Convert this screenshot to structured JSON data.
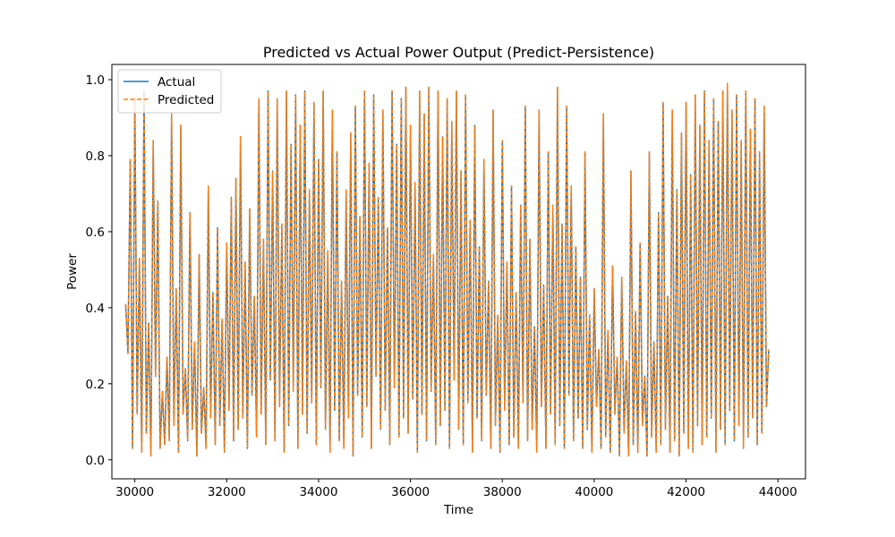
{
  "chart_data": {
    "type": "line",
    "title": "Predicted vs Actual Power Output (Predict-Persistence)",
    "xlabel": "Time",
    "ylabel": "Power",
    "xlim": [
      29500,
      44600
    ],
    "ylim": [
      -0.05,
      1.04
    ],
    "xticks": [
      30000,
      32000,
      34000,
      36000,
      38000,
      40000,
      42000,
      44000
    ],
    "yticks": [
      0.0,
      0.2,
      0.4,
      0.6,
      0.8,
      1.0
    ],
    "x_range": [
      29800,
      43800
    ],
    "legend_position": "upper-left",
    "grid": false,
    "series": [
      {
        "name": "Actual",
        "color": "#1f77b4",
        "style": "solid"
      },
      {
        "name": "Predicted",
        "color": "#ff7f0e",
        "style": "dashed"
      }
    ],
    "points": [
      [
        29800,
        0.41
      ],
      [
        29850,
        0.28
      ],
      [
        29900,
        0.79
      ],
      [
        29950,
        0.03
      ],
      [
        30000,
        0.95
      ],
      [
        30050,
        0.12
      ],
      [
        30100,
        0.53
      ],
      [
        30150,
        0.02
      ],
      [
        30200,
        0.97
      ],
      [
        30250,
        0.07
      ],
      [
        30300,
        0.36
      ],
      [
        30350,
        0.01
      ],
      [
        30400,
        0.84
      ],
      [
        30450,
        0.22
      ],
      [
        30500,
        0.68
      ],
      [
        30550,
        0.03
      ],
      [
        30600,
        0.18
      ],
      [
        30650,
        0.04
      ],
      [
        30700,
        0.27
      ],
      [
        30750,
        0.05
      ],
      [
        30800,
        0.91
      ],
      [
        30850,
        0.09
      ],
      [
        30900,
        0.45
      ],
      [
        30950,
        0.02
      ],
      [
        31000,
        0.88
      ],
      [
        31050,
        0.12
      ],
      [
        31100,
        0.24
      ],
      [
        31150,
        0.05
      ],
      [
        31200,
        0.65
      ],
      [
        31250,
        0.08
      ],
      [
        31300,
        0.31
      ],
      [
        31350,
        0.01
      ],
      [
        31400,
        0.54
      ],
      [
        31450,
        0.07
      ],
      [
        31500,
        0.19
      ],
      [
        31550,
        0.03
      ],
      [
        31600,
        0.72
      ],
      [
        31650,
        0.11
      ],
      [
        31700,
        0.44
      ],
      [
        31750,
        0.04
      ],
      [
        31800,
        0.61
      ],
      [
        31850,
        0.09
      ],
      [
        31900,
        0.37
      ],
      [
        31950,
        0.02
      ],
      [
        32000,
        0.57
      ],
      [
        32050,
        0.13
      ],
      [
        32100,
        0.69
      ],
      [
        32150,
        0.05
      ],
      [
        32200,
        0.74
      ],
      [
        32250,
        0.08
      ],
      [
        32300,
        0.85
      ],
      [
        32350,
        0.11
      ],
      [
        32400,
        0.52
      ],
      [
        32450,
        0.03
      ],
      [
        32500,
        0.66
      ],
      [
        32550,
        0.17
      ],
      [
        32600,
        0.43
      ],
      [
        32650,
        0.06
      ],
      [
        32700,
        0.95
      ],
      [
        32750,
        0.12
      ],
      [
        32800,
        0.58
      ],
      [
        32850,
        0.04
      ],
      [
        32900,
        0.97
      ],
      [
        32950,
        0.21
      ],
      [
        33000,
        0.76
      ],
      [
        33050,
        0.05
      ],
      [
        33100,
        0.95
      ],
      [
        33150,
        0.14
      ],
      [
        33200,
        0.62
      ],
      [
        33250,
        0.02
      ],
      [
        33300,
        0.97
      ],
      [
        33350,
        0.09
      ],
      [
        33400,
        0.83
      ],
      [
        33450,
        0.18
      ],
      [
        33500,
        0.96
      ],
      [
        33550,
        0.03
      ],
      [
        33600,
        0.88
      ],
      [
        33650,
        0.12
      ],
      [
        33700,
        0.97
      ],
      [
        33750,
        0.07
      ],
      [
        33800,
        0.71
      ],
      [
        33850,
        0.15
      ],
      [
        33900,
        0.94
      ],
      [
        33950,
        0.04
      ],
      [
        34000,
        0.79
      ],
      [
        34050,
        0.19
      ],
      [
        34100,
        0.97
      ],
      [
        34150,
        0.08
      ],
      [
        34200,
        0.55
      ],
      [
        34250,
        0.02
      ],
      [
        34300,
        0.92
      ],
      [
        34350,
        0.13
      ],
      [
        34400,
        0.81
      ],
      [
        34450,
        0.05
      ],
      [
        34500,
        0.47
      ],
      [
        34550,
        0.03
      ],
      [
        34600,
        0.71
      ],
      [
        34650,
        0.11
      ],
      [
        34700,
        0.86
      ],
      [
        34750,
        0.01
      ],
      [
        34800,
        0.93
      ],
      [
        34850,
        0.17
      ],
      [
        34900,
        0.64
      ],
      [
        34950,
        0.06
      ],
      [
        35000,
        0.97
      ],
      [
        35050,
        0.14
      ],
      [
        35100,
        0.78
      ],
      [
        35150,
        0.03
      ],
      [
        35200,
        0.96
      ],
      [
        35250,
        0.22
      ],
      [
        35300,
        0.69
      ],
      [
        35350,
        0.08
      ],
      [
        35400,
        0.92
      ],
      [
        35450,
        0.13
      ],
      [
        35500,
        0.61
      ],
      [
        35550,
        0.04
      ],
      [
        35600,
        0.97
      ],
      [
        35650,
        0.19
      ],
      [
        35700,
        0.83
      ],
      [
        35750,
        0.06
      ],
      [
        35800,
        0.95
      ],
      [
        35850,
        0.11
      ],
      [
        35900,
        0.98
      ],
      [
        35950,
        0.07
      ],
      [
        36000,
        0.88
      ],
      [
        36050,
        0.16
      ],
      [
        36100,
        0.73
      ],
      [
        36150,
        0.02
      ],
      [
        36200,
        0.97
      ],
      [
        36250,
        0.12
      ],
      [
        36300,
        0.91
      ],
      [
        36350,
        0.05
      ],
      [
        36400,
        0.98
      ],
      [
        36450,
        0.18
      ],
      [
        36500,
        0.54
      ],
      [
        36550,
        0.04
      ],
      [
        36600,
        0.97
      ],
      [
        36650,
        0.09
      ],
      [
        36700,
        0.85
      ],
      [
        36750,
        0.13
      ],
      [
        36800,
        0.95
      ],
      [
        36850,
        0.03
      ],
      [
        36900,
        0.89
      ],
      [
        36950,
        0.21
      ],
      [
        37000,
        0.97
      ],
      [
        37050,
        0.08
      ],
      [
        37100,
        0.76
      ],
      [
        37150,
        0.04
      ],
      [
        37200,
        0.96
      ],
      [
        37250,
        0.15
      ],
      [
        37300,
        0.63
      ],
      [
        37350,
        0.02
      ],
      [
        37400,
        0.88
      ],
      [
        37450,
        0.11
      ],
      [
        37500,
        0.56
      ],
      [
        37550,
        0.05
      ],
      [
        37600,
        0.79
      ],
      [
        37650,
        0.17
      ],
      [
        37700,
        0.47
      ],
      [
        37750,
        0.03
      ],
      [
        37800,
        0.92
      ],
      [
        37850,
        0.09
      ],
      [
        37900,
        0.38
      ],
      [
        37950,
        0.02
      ],
      [
        38000,
        0.84
      ],
      [
        38050,
        0.13
      ],
      [
        38100,
        0.52
      ],
      [
        38150,
        0.04
      ],
      [
        38200,
        0.72
      ],
      [
        38250,
        0.06
      ],
      [
        38300,
        0.44
      ],
      [
        38350,
        0.03
      ],
      [
        38400,
        0.67
      ],
      [
        38450,
        0.15
      ],
      [
        38500,
        0.93
      ],
      [
        38550,
        0.05
      ],
      [
        38600,
        0.58
      ],
      [
        38650,
        0.08
      ],
      [
        38700,
        0.35
      ],
      [
        38750,
        0.02
      ],
      [
        38800,
        0.92
      ],
      [
        38850,
        0.14
      ],
      [
        38900,
        0.46
      ],
      [
        38950,
        0.03
      ],
      [
        39000,
        0.81
      ],
      [
        39050,
        0.12
      ],
      [
        39100,
        0.67
      ],
      [
        39150,
        0.04
      ],
      [
        39200,
        0.98
      ],
      [
        39250,
        0.09
      ],
      [
        39300,
        0.62
      ],
      [
        39350,
        0.03
      ],
      [
        39400,
        0.93
      ],
      [
        39450,
        0.17
      ],
      [
        39500,
        0.72
      ],
      [
        39550,
        0.05
      ],
      [
        39600,
        0.56
      ],
      [
        39650,
        0.11
      ],
      [
        39700,
        0.48
      ],
      [
        39750,
        0.03
      ],
      [
        39800,
        0.81
      ],
      [
        39850,
        0.08
      ],
      [
        39900,
        0.38
      ],
      [
        39950,
        0.02
      ],
      [
        40000,
        0.45
      ],
      [
        40050,
        0.14
      ],
      [
        40100,
        0.29
      ],
      [
        40150,
        0.03
      ],
      [
        40200,
        0.91
      ],
      [
        40250,
        0.06
      ],
      [
        40300,
        0.34
      ],
      [
        40350,
        0.02
      ],
      [
        40400,
        0.51
      ],
      [
        40450,
        0.12
      ],
      [
        40500,
        0.27
      ],
      [
        40550,
        0.01
      ],
      [
        40600,
        0.48
      ],
      [
        40650,
        0.07
      ],
      [
        40700,
        0.26
      ],
      [
        40750,
        0.01
      ],
      [
        40800,
        0.76
      ],
      [
        40850,
        0.04
      ],
      [
        40900,
        0.39
      ],
      [
        40950,
        0.02
      ],
      [
        41000,
        0.57
      ],
      [
        41050,
        0.09
      ],
      [
        41100,
        0.22
      ],
      [
        41150,
        0.01
      ],
      [
        41200,
        0.81
      ],
      [
        41250,
        0.06
      ],
      [
        41300,
        0.31
      ],
      [
        41350,
        0.02
      ],
      [
        41400,
        0.65
      ],
      [
        41450,
        0.04
      ],
      [
        41500,
        0.94
      ],
      [
        41550,
        0.08
      ],
      [
        41600,
        0.43
      ],
      [
        41650,
        0.02
      ],
      [
        41700,
        0.92
      ],
      [
        41750,
        0.05
      ],
      [
        41800,
        0.71
      ],
      [
        41850,
        0.01
      ],
      [
        41900,
        0.86
      ],
      [
        41950,
        0.07
      ],
      [
        42000,
        0.94
      ],
      [
        42050,
        0.03
      ],
      [
        42100,
        0.75
      ],
      [
        42150,
        0.02
      ],
      [
        42200,
        0.96
      ],
      [
        42250,
        0.09
      ],
      [
        42300,
        0.88
      ],
      [
        42350,
        0.04
      ],
      [
        42400,
        0.97
      ],
      [
        42450,
        0.06
      ],
      [
        42500,
        0.84
      ],
      [
        42550,
        0.11
      ],
      [
        42600,
        0.95
      ],
      [
        42650,
        0.02
      ],
      [
        42700,
        0.89
      ],
      [
        42750,
        0.08
      ],
      [
        42800,
        0.97
      ],
      [
        42850,
        0.04
      ],
      [
        42900,
        0.99
      ],
      [
        42950,
        0.13
      ],
      [
        43000,
        0.92
      ],
      [
        43050,
        0.05
      ],
      [
        43100,
        0.96
      ],
      [
        43150,
        0.09
      ],
      [
        43200,
        0.84
      ],
      [
        43250,
        0.03
      ],
      [
        43300,
        0.97
      ],
      [
        43350,
        0.06
      ],
      [
        43400,
        0.87
      ],
      [
        43450,
        0.11
      ],
      [
        43500,
        0.95
      ],
      [
        43550,
        0.04
      ],
      [
        43600,
        0.81
      ],
      [
        43650,
        0.07
      ],
      [
        43700,
        0.93
      ],
      [
        43750,
        0.14
      ],
      [
        43800,
        0.29
      ]
    ]
  },
  "legend": {
    "actual_label": "Actual",
    "predicted_label": "Predicted"
  }
}
